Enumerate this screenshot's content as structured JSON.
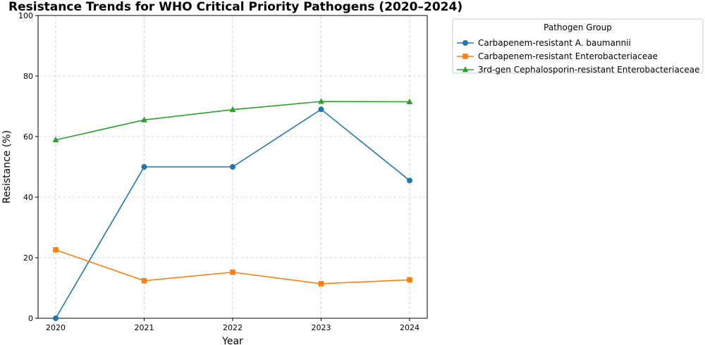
{
  "chart_data": {
    "type": "line",
    "title": "Resistance Trends for WHO Critical Priority Pathogens (2020–2024)",
    "xlabel": "Year",
    "ylabel": "Resistance (%)",
    "x": [
      "2020",
      "2021",
      "2022",
      "2023",
      "2024"
    ],
    "ylim": [
      0,
      100
    ],
    "yticks": [
      "0",
      "20",
      "40",
      "60",
      "80",
      "100"
    ],
    "grid": true,
    "legend": {
      "title": "Pathogen Group",
      "placement": "outside-right"
    },
    "series": [
      {
        "name": "Carbapenem-resistant A. baumannii",
        "color": "#1f77b4",
        "marker": "circle",
        "values": [
          0,
          50,
          50,
          69,
          45.5
        ]
      },
      {
        "name": "Carbapenem-resistant Enterobacteriaceae",
        "color": "#ff7f0e",
        "marker": "square",
        "values": [
          22.6,
          12.4,
          15.2,
          11.4,
          12.7
        ]
      },
      {
        "name": "3rd-gen Cephalosporin-resistant Enterobacteriaceae",
        "color": "#2ca02c",
        "marker": "triangle",
        "values": [
          58.9,
          65.5,
          68.9,
          71.6,
          71.5
        ]
      }
    ]
  }
}
